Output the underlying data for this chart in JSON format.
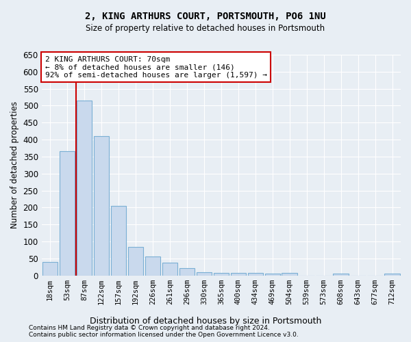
{
  "title": "2, KING ARTHURS COURT, PORTSMOUTH, PO6 1NU",
  "subtitle": "Size of property relative to detached houses in Portsmouth",
  "xlabel": "Distribution of detached houses by size in Portsmouth",
  "ylabel": "Number of detached properties",
  "bar_color": "#c9d9ed",
  "bar_edge_color": "#7aafd4",
  "categories": [
    "18sqm",
    "53sqm",
    "87sqm",
    "122sqm",
    "157sqm",
    "192sqm",
    "226sqm",
    "261sqm",
    "296sqm",
    "330sqm",
    "365sqm",
    "400sqm",
    "434sqm",
    "469sqm",
    "504sqm",
    "539sqm",
    "573sqm",
    "608sqm",
    "643sqm",
    "677sqm",
    "712sqm"
  ],
  "values": [
    40,
    365,
    515,
    410,
    205,
    83,
    55,
    37,
    22,
    10,
    8,
    8,
    8,
    5,
    7,
    0,
    0,
    5,
    0,
    0,
    5
  ],
  "ylim": [
    0,
    650
  ],
  "yticks": [
    0,
    50,
    100,
    150,
    200,
    250,
    300,
    350,
    400,
    450,
    500,
    550,
    600,
    650
  ],
  "vline_x": 1.5,
  "vline_color": "#cc0000",
  "annotation_text": "2 KING ARTHURS COURT: 70sqm\n← 8% of detached houses are smaller (146)\n92% of semi-detached houses are larger (1,597) →",
  "annotation_box_color": "#ffffff",
  "annotation_box_edge": "#cc0000",
  "footer1": "Contains HM Land Registry data © Crown copyright and database right 2024.",
  "footer2": "Contains public sector information licensed under the Open Government Licence v3.0.",
  "background_color": "#e8eef4",
  "grid_color": "#ffffff"
}
